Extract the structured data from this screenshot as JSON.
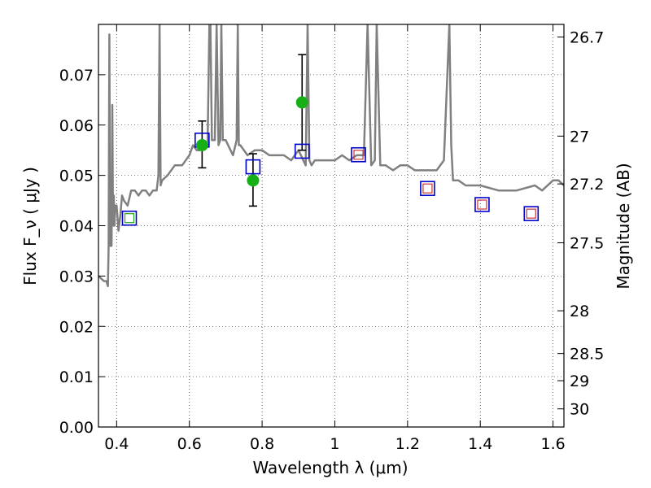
{
  "chart_data": {
    "type": "scatter",
    "xlabel": "Wavelength  λ (μm)",
    "ylabel": "Flux  F_ν  ( μJy )",
    "ylabel_right": "Magnitude (AB)",
    "xlim": [
      0.35,
      1.63
    ],
    "ylim": [
      0.0,
      0.08
    ],
    "grid": true,
    "colors": {
      "spectrum": "#808080",
      "open_square": "#0000cc",
      "inner_square_green": "#22aa22",
      "inner_square_red": "#cc3333",
      "observed": "#16b016",
      "errorbar": "#000000"
    },
    "x_ticks": [
      0.4,
      0.6,
      0.8,
      1.0,
      1.2,
      1.4,
      1.6
    ],
    "x_tick_labels": [
      "0.4",
      "0.6",
      "0.8",
      "1",
      "1.2",
      "1.4",
      "1.6"
    ],
    "y_ticks": [
      0.0,
      0.01,
      0.02,
      0.03,
      0.04,
      0.05,
      0.06,
      0.07
    ],
    "y_tick_labels": [
      "0.00",
      "0.01",
      "0.02",
      "0.03",
      "0.04",
      "0.05",
      "0.06",
      "0.07"
    ],
    "right_ticks": [
      {
        "label": "26.7",
        "flux": 0.0775
      },
      {
        "label": "27",
        "flux": 0.0578
      },
      {
        "label": "27.2",
        "flux": 0.0483
      },
      {
        "label": "27.5",
        "flux": 0.0366
      },
      {
        "label": "28",
        "flux": 0.0231
      },
      {
        "label": "28.5",
        "flux": 0.0146
      },
      {
        "label": "29",
        "flux": 0.0092
      },
      {
        "label": "30",
        "flux": 0.0036
      }
    ],
    "spectrum": {
      "x": [
        0.35,
        0.365,
        0.372,
        0.376,
        0.378,
        0.38,
        0.382,
        0.384,
        0.386,
        0.388,
        0.39,
        0.392,
        0.394,
        0.396,
        0.4,
        0.405,
        0.41,
        0.415,
        0.42,
        0.43,
        0.44,
        0.45,
        0.46,
        0.47,
        0.48,
        0.49,
        0.5,
        0.51,
        0.515,
        0.518,
        0.521,
        0.525,
        0.54,
        0.56,
        0.58,
        0.6,
        0.61,
        0.62,
        0.63,
        0.64,
        0.65,
        0.655,
        0.6563,
        0.658,
        0.662,
        0.67,
        0.675,
        0.68,
        0.685,
        0.688,
        0.692,
        0.7,
        0.72,
        0.73,
        0.733,
        0.736,
        0.74,
        0.76,
        0.78,
        0.8,
        0.82,
        0.84,
        0.86,
        0.88,
        0.9,
        0.92,
        0.925,
        0.93,
        0.936,
        0.945,
        0.96,
        0.98,
        1.0,
        1.02,
        1.04,
        1.06,
        1.07,
        1.08,
        1.09,
        1.1,
        1.11,
        1.115,
        1.125,
        1.14,
        1.16,
        1.18,
        1.2,
        1.22,
        1.24,
        1.26,
        1.28,
        1.3,
        1.315,
        1.32,
        1.325,
        1.34,
        1.36,
        1.4,
        1.45,
        1.5,
        1.55,
        1.57,
        1.6,
        1.615,
        1.63
      ],
      "y": [
        0.03,
        0.029,
        0.029,
        0.028,
        0.036,
        0.078,
        0.036,
        0.04,
        0.036,
        0.064,
        0.04,
        0.046,
        0.04,
        0.044,
        0.044,
        0.039,
        0.042,
        0.046,
        0.045,
        0.044,
        0.047,
        0.047,
        0.046,
        0.047,
        0.047,
        0.046,
        0.047,
        0.047,
        0.05,
        0.08,
        0.048,
        0.049,
        0.05,
        0.052,
        0.052,
        0.054,
        0.056,
        0.055,
        0.055,
        0.056,
        0.056,
        0.08,
        0.08,
        0.08,
        0.057,
        0.057,
        0.08,
        0.056,
        0.057,
        0.08,
        0.057,
        0.057,
        0.054,
        0.057,
        0.08,
        0.056,
        0.056,
        0.054,
        0.055,
        0.055,
        0.054,
        0.054,
        0.054,
        0.053,
        0.055,
        0.052,
        0.08,
        0.053,
        0.052,
        0.053,
        0.053,
        0.053,
        0.053,
        0.054,
        0.053,
        0.054,
        0.054,
        0.054,
        0.08,
        0.052,
        0.053,
        0.08,
        0.052,
        0.052,
        0.051,
        0.052,
        0.052,
        0.051,
        0.051,
        0.051,
        0.051,
        0.053,
        0.08,
        0.056,
        0.049,
        0.049,
        0.048,
        0.048,
        0.047,
        0.047,
        0.048,
        0.047,
        0.049,
        0.049,
        0.048
      ]
    },
    "errorbar_points": [
      {
        "x": 0.635,
        "y": 0.056,
        "yerr_low": 0.0045,
        "yerr_high": 0.0048
      },
      {
        "x": 0.775,
        "y": 0.049,
        "yerr_low": 0.0051,
        "yerr_high": 0.0053
      },
      {
        "x": 0.91,
        "y": 0.0645,
        "yerr_low": 0.0095,
        "yerr_high": 0.0095
      }
    ],
    "model_points": [
      {
        "x": 0.435,
        "y": 0.0415,
        "inner": "green"
      },
      {
        "x": 0.635,
        "y": 0.057,
        "inner": "none"
      },
      {
        "x": 0.775,
        "y": 0.0517,
        "inner": "none"
      },
      {
        "x": 0.91,
        "y": 0.0548,
        "inner": "none"
      },
      {
        "x": 1.065,
        "y": 0.0541,
        "inner": "red"
      },
      {
        "x": 1.255,
        "y": 0.0474,
        "inner": "red"
      },
      {
        "x": 1.405,
        "y": 0.0442,
        "inner": "red"
      },
      {
        "x": 1.54,
        "y": 0.0424,
        "inner": "red"
      }
    ]
  }
}
